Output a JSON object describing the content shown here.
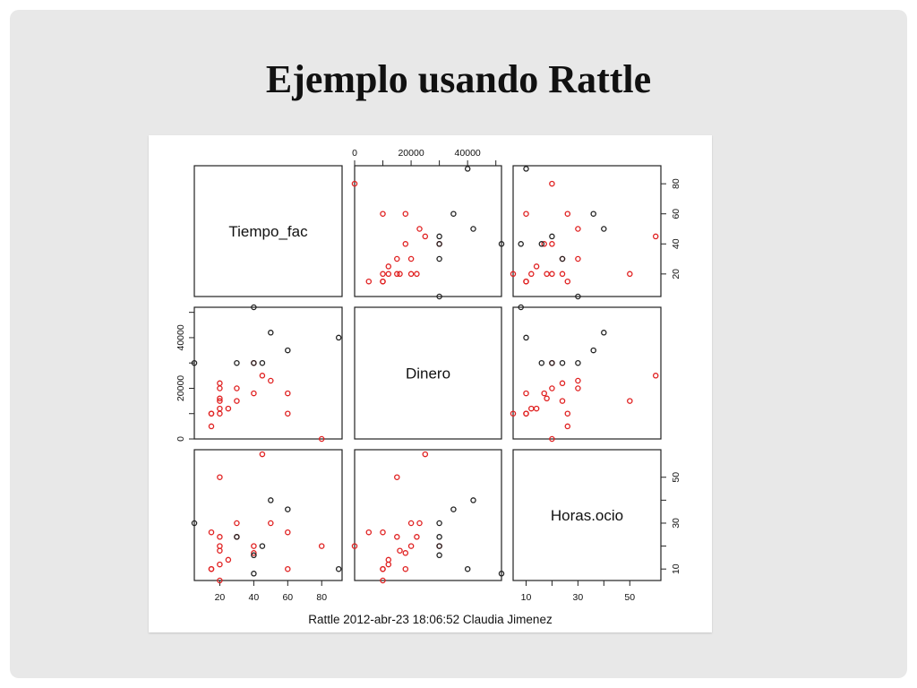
{
  "slide": {
    "title": "Ejemplo usando Rattle"
  },
  "chart_data": {
    "type": "scatter",
    "variables": [
      "Tiempo_fac",
      "Dinero",
      "Horas.ocio"
    ],
    "axes": {
      "Tiempo_fac": {
        "ylim": [
          5,
          92
        ],
        "ticks": [
          20,
          40,
          60,
          80
        ]
      },
      "Dinero": {
        "ylim": [
          0,
          52000
        ],
        "ticks": [
          0,
          20000,
          40000
        ]
      },
      "Horas.ocio": {
        "ylim": [
          5,
          62
        ],
        "ticks": [
          10,
          30,
          50
        ],
        "minor_ticks": [
          20,
          40
        ]
      }
    },
    "top_axis_labels": [
      "0",
      "20000",
      "40000"
    ],
    "left_axis_labels": [
      "0",
      "20000",
      "40000"
    ],
    "bottom_axis_labels": [
      "20",
      "40",
      "60",
      "80",
      "10",
      "30",
      "50"
    ],
    "right_axis_labels": [
      "20",
      "40",
      "60",
      "80",
      "10",
      "30",
      "50"
    ],
    "colors": {
      "red": "#e02020",
      "black": "#222222"
    },
    "series": [
      {
        "color": "red",
        "points": [
          {
            "Tiempo_fac": 80,
            "Dinero": 0,
            "Horas.ocio": 20
          },
          {
            "Tiempo_fac": 15,
            "Dinero": 5000,
            "Horas.ocio": 26
          },
          {
            "Tiempo_fac": 15,
            "Dinero": 10000,
            "Horas.ocio": 10
          },
          {
            "Tiempo_fac": 15,
            "Dinero": 10000,
            "Horas.ocio": 10
          },
          {
            "Tiempo_fac": 20,
            "Dinero": 10000,
            "Horas.ocio": 5
          },
          {
            "Tiempo_fac": 20,
            "Dinero": 12000,
            "Horas.ocio": 12
          },
          {
            "Tiempo_fac": 20,
            "Dinero": 15000,
            "Horas.ocio": 50
          },
          {
            "Tiempo_fac": 25,
            "Dinero": 12000,
            "Horas.ocio": 14
          },
          {
            "Tiempo_fac": 30,
            "Dinero": 15000,
            "Horas.ocio": 24
          },
          {
            "Tiempo_fac": 20,
            "Dinero": 16000,
            "Horas.ocio": 18
          },
          {
            "Tiempo_fac": 20,
            "Dinero": 20000,
            "Horas.ocio": 20
          },
          {
            "Tiempo_fac": 30,
            "Dinero": 20000,
            "Horas.ocio": 30
          },
          {
            "Tiempo_fac": 40,
            "Dinero": 18000,
            "Horas.ocio": 17
          },
          {
            "Tiempo_fac": 45,
            "Dinero": 25000,
            "Horas.ocio": 60
          },
          {
            "Tiempo_fac": 50,
            "Dinero": 23000,
            "Horas.ocio": 30
          },
          {
            "Tiempo_fac": 60,
            "Dinero": 18000,
            "Horas.ocio": 10
          },
          {
            "Tiempo_fac": 60,
            "Dinero": 10000,
            "Horas.ocio": 26
          },
          {
            "Tiempo_fac": 40,
            "Dinero": 30000,
            "Horas.ocio": 20
          },
          {
            "Tiempo_fac": 20,
            "Dinero": 22000,
            "Horas.ocio": 24
          }
        ]
      },
      {
        "color": "black",
        "points": [
          {
            "Tiempo_fac": 5,
            "Dinero": 30000,
            "Horas.ocio": 30
          },
          {
            "Tiempo_fac": 30,
            "Dinero": 30000,
            "Horas.ocio": 24
          },
          {
            "Tiempo_fac": 40,
            "Dinero": 30000,
            "Horas.ocio": 16
          },
          {
            "Tiempo_fac": 45,
            "Dinero": 30000,
            "Horas.ocio": 20
          },
          {
            "Tiempo_fac": 40,
            "Dinero": 52000,
            "Horas.ocio": 8
          },
          {
            "Tiempo_fac": 50,
            "Dinero": 42000,
            "Horas.ocio": 40
          },
          {
            "Tiempo_fac": 60,
            "Dinero": 35000,
            "Horas.ocio": 36
          },
          {
            "Tiempo_fac": 90,
            "Dinero": 40000,
            "Horas.ocio": 10
          }
        ]
      }
    ]
  },
  "footer": "Rattle 2012-abr-23 18:06:52 Claudia Jimenez"
}
